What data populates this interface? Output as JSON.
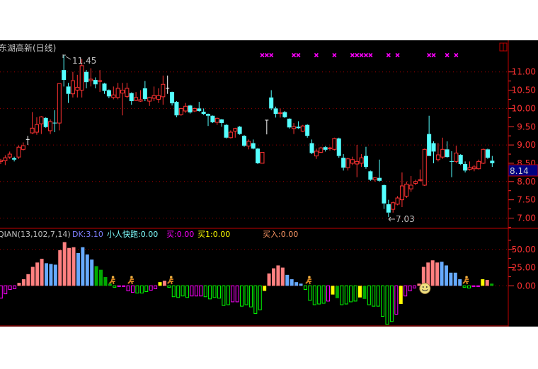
{
  "header": {
    "title": "东湖高新(日线)",
    "high_label": "11.45",
    "low_label": "7.03",
    "last_price_box": "8.14"
  },
  "indicator_header": {
    "name": "QIAN(13,102,7,14)",
    "dk": "DK:3.10",
    "runner": "小人快跑:0.00",
    "buy": "买:0.00",
    "buy1": "买1:0.00",
    "buy_in": "买入:0.00"
  },
  "colors": {
    "up": "#ff3232",
    "down": "#54ffff",
    "doji": "#ffffff",
    "axis": "#ff3232",
    "grid": "#a00000",
    "marker": "#ff00ff",
    "price_box_bg": "#000080",
    "P": "#ff8080",
    "B": "#66aaff",
    "G": "#00aa00",
    "g": "#00ff00",
    "M": "#ff00ff",
    "Y": "#ffff00",
    "dk_text": "#8080ff",
    "runner_text": "#80ffff",
    "buy_text": "#ff00ff",
    "buy1_text": "#ffff00",
    "buyin_text": "#ff9966",
    "name_text": "#c0c0c0"
  },
  "chart_data": [
    {
      "type": "candlestick",
      "title": "东湖高新(日线)",
      "ylim": [
        6.85,
        11.5
      ],
      "yticks": [
        "11.00",
        "10.50",
        "10.00",
        "9.50",
        "9.00",
        "8.50",
        "8.00",
        "7.50",
        "7.00"
      ],
      "grid_levels": [
        11,
        10,
        9,
        8,
        7
      ],
      "ohlc_format": [
        "open",
        "high",
        "low",
        "close"
      ],
      "candles": [
        [
          8.55,
          8.62,
          8.48,
          8.58
        ],
        [
          8.57,
          8.72,
          8.45,
          8.65
        ],
        [
          8.67,
          8.82,
          8.62,
          8.75
        ],
        [
          8.64,
          8.68,
          8.55,
          8.6
        ],
        [
          8.67,
          8.99,
          8.62,
          8.94
        ],
        [
          8.88,
          9.07,
          8.85,
          8.98
        ],
        [
          9.15,
          9.25,
          9.0,
          9.15
        ],
        [
          9.33,
          9.9,
          9.3,
          9.46
        ],
        [
          9.35,
          9.76,
          9.28,
          9.56
        ],
        [
          9.58,
          9.79,
          9.3,
          9.77
        ],
        [
          9.74,
          9.76,
          9.47,
          9.49
        ],
        [
          9.39,
          9.7,
          9.3,
          9.64
        ],
        [
          9.61,
          9.95,
          9.35,
          9.6
        ],
        [
          9.6,
          10.68,
          9.4,
          10.68
        ],
        [
          11.05,
          11.45,
          10.6,
          10.78
        ],
        [
          10.6,
          10.7,
          10.15,
          10.4
        ],
        [
          10.4,
          11.0,
          10.3,
          10.76
        ],
        [
          10.5,
          10.92,
          10.3,
          10.58
        ],
        [
          10.5,
          11.35,
          10.3,
          11.17
        ],
        [
          11.0,
          11.05,
          10.55,
          10.72
        ],
        [
          10.76,
          11.1,
          10.6,
          10.8
        ],
        [
          10.78,
          10.85,
          10.55,
          10.66
        ],
        [
          10.74,
          11.05,
          10.45,
          10.76
        ],
        [
          10.68,
          10.7,
          10.4,
          10.48
        ],
        [
          10.5,
          10.52,
          10.28,
          10.33
        ],
        [
          10.3,
          10.6,
          10.25,
          10.37
        ],
        [
          10.3,
          10.7,
          10.25,
          10.55
        ],
        [
          10.42,
          10.7,
          9.81,
          10.5
        ],
        [
          10.33,
          10.7,
          10.28,
          10.55
        ],
        [
          10.42,
          10.44,
          10.1,
          10.2
        ],
        [
          10.22,
          10.45,
          10.2,
          10.3
        ],
        [
          10.2,
          10.5,
          10.18,
          10.24
        ],
        [
          10.55,
          10.75,
          10.2,
          10.26
        ],
        [
          10.2,
          10.32,
          10.07,
          10.3
        ],
        [
          10.28,
          10.6,
          10.2,
          10.35
        ],
        [
          10.25,
          10.55,
          10.15,
          10.35
        ],
        [
          10.32,
          10.9,
          10.1,
          10.66
        ],
        [
          10.55,
          10.9,
          10.4,
          10.55
        ],
        [
          10.45,
          10.46,
          10.08,
          10.14
        ],
        [
          10.18,
          10.2,
          9.76,
          9.81
        ],
        [
          9.83,
          10.01,
          9.8,
          10.0
        ],
        [
          9.93,
          10.15,
          9.88,
          10.06
        ],
        [
          10.08,
          10.1,
          9.86,
          9.89
        ],
        [
          9.93,
          10.02,
          9.9,
          10.0
        ],
        [
          10.0,
          10.18,
          9.91,
          9.93
        ],
        [
          9.91,
          10.0,
          9.82,
          9.85
        ],
        [
          9.85,
          9.86,
          9.52,
          9.8
        ],
        [
          9.8,
          9.81,
          9.6,
          9.62
        ],
        [
          9.62,
          9.75,
          9.55,
          9.73
        ],
        [
          9.7,
          9.71,
          9.5,
          9.6
        ],
        [
          9.55,
          9.57,
          9.18,
          9.2
        ],
        [
          9.2,
          9.4,
          9.18,
          9.35
        ],
        [
          9.38,
          9.47,
          9.2,
          9.45
        ],
        [
          9.5,
          9.52,
          9.28,
          9.3
        ],
        [
          9.25,
          9.27,
          8.95,
          8.98
        ],
        [
          8.97,
          9.15,
          8.88,
          9.1
        ],
        [
          9.05,
          9.15,
          8.88,
          8.9
        ],
        [
          8.9,
          8.92,
          8.48,
          8.5
        ],
        [
          8.5,
          8.8,
          8.5,
          8.8
        ],
        [
          9.68,
          9.68,
          9.29,
          9.68
        ],
        [
          10.3,
          10.5,
          9.95,
          10.0
        ],
        [
          10.0,
          10.05,
          9.75,
          9.85
        ],
        [
          9.86,
          10.0,
          9.75,
          9.88
        ],
        [
          9.9,
          9.93,
          9.74,
          9.76
        ],
        [
          9.72,
          9.73,
          9.45,
          9.48
        ],
        [
          9.45,
          9.6,
          9.3,
          9.5
        ],
        [
          9.5,
          9.65,
          9.44,
          9.46
        ],
        [
          9.38,
          9.55,
          9.36,
          9.52
        ],
        [
          9.55,
          9.57,
          9.2,
          9.25
        ],
        [
          9.05,
          9.15,
          8.75,
          8.78
        ],
        [
          8.7,
          8.9,
          8.62,
          8.83
        ],
        [
          8.8,
          8.95,
          8.78,
          8.92
        ],
        [
          8.94,
          8.97,
          8.82,
          8.87
        ],
        [
          8.91,
          8.95,
          8.85,
          8.92
        ],
        [
          8.88,
          9.2,
          8.85,
          9.18
        ],
        [
          9.18,
          9.2,
          8.65,
          8.7
        ],
        [
          8.65,
          8.75,
          8.3,
          8.38
        ],
        [
          8.38,
          8.65,
          8.3,
          8.62
        ],
        [
          8.5,
          8.68,
          8.45,
          8.6
        ],
        [
          8.48,
          9.0,
          8.12,
          8.55
        ],
        [
          8.5,
          8.75,
          8.4,
          8.65
        ],
        [
          8.7,
          8.95,
          8.35,
          8.4
        ],
        [
          8.28,
          8.3,
          8.02,
          8.05
        ],
        [
          8.05,
          8.12,
          8.0,
          8.1
        ],
        [
          8.1,
          8.6,
          8.0,
          8.02
        ],
        [
          7.9,
          7.92,
          7.25,
          7.4
        ],
        [
          7.38,
          7.5,
          7.03,
          7.15
        ],
        [
          7.24,
          7.45,
          7.15,
          7.42
        ],
        [
          7.38,
          7.6,
          7.35,
          7.55
        ],
        [
          7.5,
          8.25,
          7.3,
          7.88
        ],
        [
          7.6,
          8.0,
          7.55,
          7.93
        ],
        [
          7.8,
          8.15,
          7.72,
          7.9
        ],
        [
          7.95,
          8.05,
          7.9,
          8.0
        ],
        [
          8.04,
          8.33,
          8.0,
          8.05
        ],
        [
          7.9,
          8.9,
          7.88,
          8.88
        ],
        [
          9.3,
          9.8,
          8.7,
          8.7
        ],
        [
          9.05,
          9.1,
          8.5,
          8.82
        ],
        [
          8.6,
          9.05,
          8.55,
          8.73
        ],
        [
          8.67,
          9.2,
          8.62,
          8.88
        ],
        [
          8.88,
          9.1,
          8.65,
          8.67
        ],
        [
          8.56,
          8.83,
          8.12,
          8.55
        ],
        [
          8.55,
          8.98,
          8.5,
          8.78
        ],
        [
          8.73,
          8.75,
          8.45,
          8.48
        ],
        [
          8.48,
          8.55,
          8.25,
          8.3
        ],
        [
          8.33,
          8.55,
          8.3,
          8.38
        ],
        [
          8.35,
          8.45,
          8.28,
          8.4
        ],
        [
          8.35,
          8.6,
          8.33,
          8.55
        ],
        [
          8.5,
          8.9,
          8.48,
          8.88
        ],
        [
          8.88,
          8.9,
          8.62,
          8.65
        ],
        [
          8.57,
          8.7,
          8.4,
          8.5
        ]
      ],
      "signal_markers_at": [
        58,
        59,
        60,
        65,
        66,
        70,
        74,
        78,
        79,
        80,
        81,
        82,
        86,
        88,
        95,
        96,
        99,
        101
      ],
      "high_index": 14,
      "low_index": 86
    },
    {
      "type": "bar",
      "title": "QIAN(13,102,7,14)",
      "ylim": [
        -56,
        70
      ],
      "yticks": [
        "50.00",
        "25.00",
        "0.00"
      ],
      "grid_levels": [
        50,
        0
      ],
      "values": [
        -17,
        -11,
        -5,
        -4,
        4,
        9,
        16,
        26,
        32,
        37,
        31,
        30,
        29,
        49,
        60,
        52,
        53,
        45,
        53,
        43,
        36,
        27,
        22,
        12,
        3,
        -2,
        -1,
        -0.5,
        -7,
        -9,
        -10,
        -10,
        -8,
        -6,
        -4,
        5,
        7,
        -2,
        -15,
        -16,
        -14,
        -16,
        -14,
        -14,
        -14,
        -15,
        -18,
        -16,
        -17,
        -27,
        -26,
        -22,
        -22,
        -28,
        -26,
        -29,
        -38,
        -33,
        -7,
        17,
        24,
        28,
        25,
        15,
        9,
        5,
        3,
        -5,
        -20,
        -26,
        -25,
        -24,
        -21,
        -12,
        -17,
        -26,
        -25,
        -22,
        -21,
        -16,
        -18,
        -26,
        -28,
        -28,
        -42,
        -53,
        -49,
        -39,
        -25,
        -14,
        -7,
        -3,
        3,
        26,
        32,
        35,
        32,
        33,
        28,
        18,
        18,
        9,
        -2,
        -3,
        -1,
        -1,
        9,
        8,
        3
      ],
      "kinds": "MMMMPPPPPPBBBPPPPBBBBGGGGgMMMMgggMMYPgggggMMMggggggMMgggggYPPPPBBBBgggggMYGggggYGggggggMYMMMPPPPPBBBBBggMMYPG",
      "runner_icons_at": [
        24.5,
        28.6,
        37.3,
        67.7,
        102.3
      ],
      "smiley_icons_at": [
        93.3
      ]
    }
  ]
}
